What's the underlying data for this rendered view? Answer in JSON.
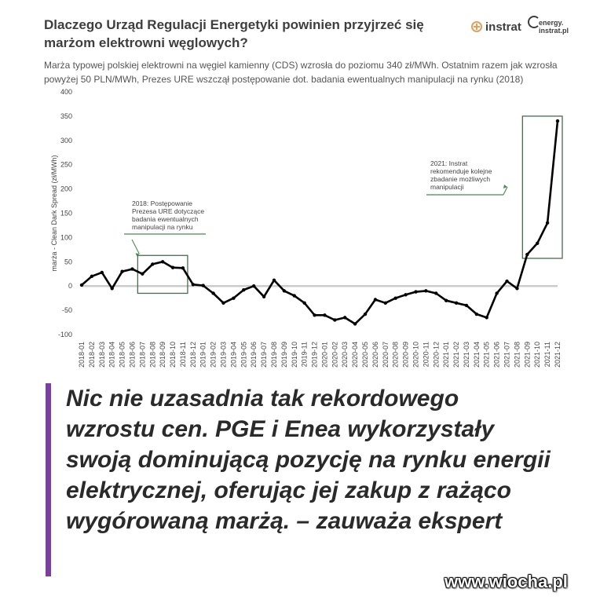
{
  "header": {
    "title": "Dlaczego Urząd Regulacji Energetyki powinien przyjrzeć się marżom elektrowni węglowych?",
    "subtitle": "Marża typowej polskiej elektrowni na węgiel kamienny (CDS) wzrosła do poziomu 340 zł/MWh. Ostatnim razem jak wzrosła powyżej 50 PLN/MWh, Prezes URE wszczął postępowanie dot. badania ewentualnych manipulacji na rynku (2018)",
    "logos": {
      "instrat": "instrat",
      "energy_line1": "energy.",
      "energy_line2": "instrat.pl"
    }
  },
  "chart_data": {
    "type": "line",
    "title": "Dlaczego Urząd Regulacji Energetyki powinien przyjrzeć się marżom elektrowni węglowych?",
    "ylabel": "marża - Clean Dark Spread (zł/MWh)",
    "xlabel": "",
    "ylim": [
      -100,
      400
    ],
    "yticks": [
      -100,
      -50,
      0,
      50,
      100,
      150,
      200,
      250,
      300,
      350,
      400
    ],
    "grid": false,
    "zero_line": true,
    "line_color": "#000000",
    "categories": [
      "2018-01",
      "2018-02",
      "2018-03",
      "2018-04",
      "2018-05",
      "2018-06",
      "2018-07",
      "2018-08",
      "2018-09",
      "2018-10",
      "2018-11",
      "2018-12",
      "2019-01",
      "2019-02",
      "2019-03",
      "2019-04",
      "2019-05",
      "2019-06",
      "2019-07",
      "2019-08",
      "2019-09",
      "2019-10",
      "2019-11",
      "2019-12",
      "2020-01",
      "2020-02",
      "2020-03",
      "2020-04",
      "2020-05",
      "2020-06",
      "2020-07",
      "2020-08",
      "2020-09",
      "2020-10",
      "2020-11",
      "2020-12",
      "2021-01",
      "2021-02",
      "2021-03",
      "2021-04",
      "2021-05",
      "2021-06",
      "2021-07",
      "2021-08",
      "2021-09",
      "2021-10",
      "2021-11",
      "2021-12"
    ],
    "series": [
      {
        "values": [
          2,
          20,
          28,
          -5,
          30,
          35,
          25,
          45,
          50,
          38,
          37,
          3,
          1,
          -15,
          -35,
          -25,
          -8,
          0,
          -22,
          12,
          -10,
          -20,
          -35,
          -60,
          -60,
          -70,
          -65,
          -78,
          -58,
          -28,
          -35,
          -25,
          -18,
          -12,
          -10,
          -15,
          -30,
          -35,
          -40,
          -58,
          -65,
          -15,
          10,
          -5,
          65,
          88,
          130,
          340
        ]
      }
    ],
    "annotations": [
      {
        "lines": [
          "2018: Postępowanie",
          "Prezesa URE dotyczące",
          "badania ewentualnych",
          "manipulacji na rynku"
        ],
        "box_from": "2018-07",
        "box_to": "2018-11",
        "box_ymin": -15,
        "box_ymax": 63
      },
      {
        "lines": [
          "2021: Instrat",
          "rekomenduje kolejne",
          "zbadanie możliwych",
          "manipulacji"
        ],
        "box_from": "2021-09",
        "box_to": "2021-12",
        "box_ymin": 57,
        "box_ymax": 350
      }
    ]
  },
  "quote": "Nic nie uzasadnia tak rekordowego wzrostu cen. PGE i Enea wykorzystały swoją dominującą pozycję na rynku energii elektrycznej, oferując jej zakup z rażąco wygórowaną marżą. – zauważa ekspert",
  "watermark": "www.wiocha.pl",
  "colors": {
    "title": "#3e3e3e",
    "quote_bar": "#7a3fa0",
    "zero_line": "#cccccc",
    "annotation_box": "#4a6a55",
    "annotation_arrow": "#4a8a55"
  }
}
